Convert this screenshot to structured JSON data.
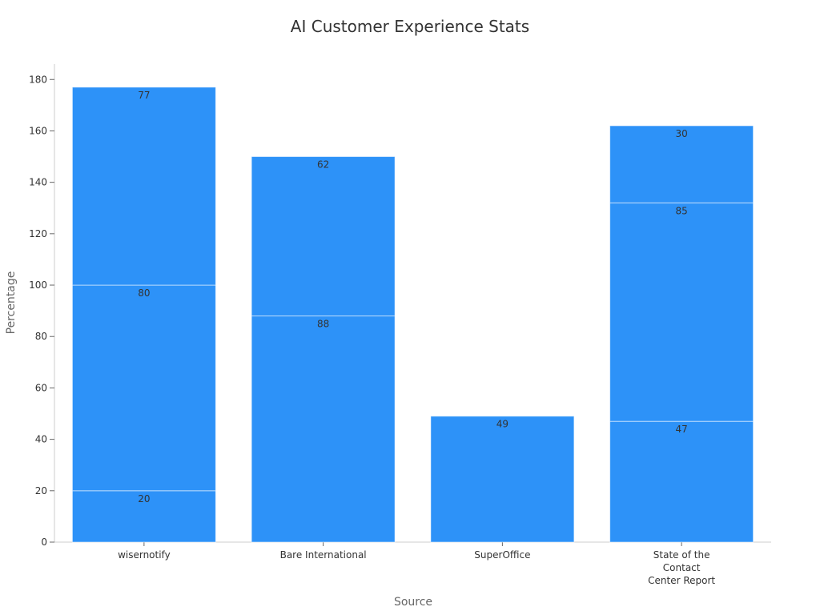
{
  "chart_data": {
    "type": "bar",
    "stacked": true,
    "title": "AI Customer Experience Stats",
    "xlabel": "Source",
    "ylabel": "Percentage",
    "ylim": [
      0,
      186
    ],
    "yticks": [
      0,
      20,
      40,
      60,
      80,
      100,
      120,
      140,
      160,
      180
    ],
    "categories": [
      [
        "wisernotify"
      ],
      [
        "Bare International"
      ],
      [
        "SuperOffice"
      ],
      [
        "State of the",
        "Contact",
        "Center Report"
      ]
    ],
    "stacks": [
      [
        20,
        80,
        77
      ],
      [
        88,
        62
      ],
      [
        49
      ],
      [
        47,
        85,
        30
      ]
    ],
    "grid": false,
    "legend": "none",
    "colors": {
      "bar": "#2d92f8"
    }
  }
}
